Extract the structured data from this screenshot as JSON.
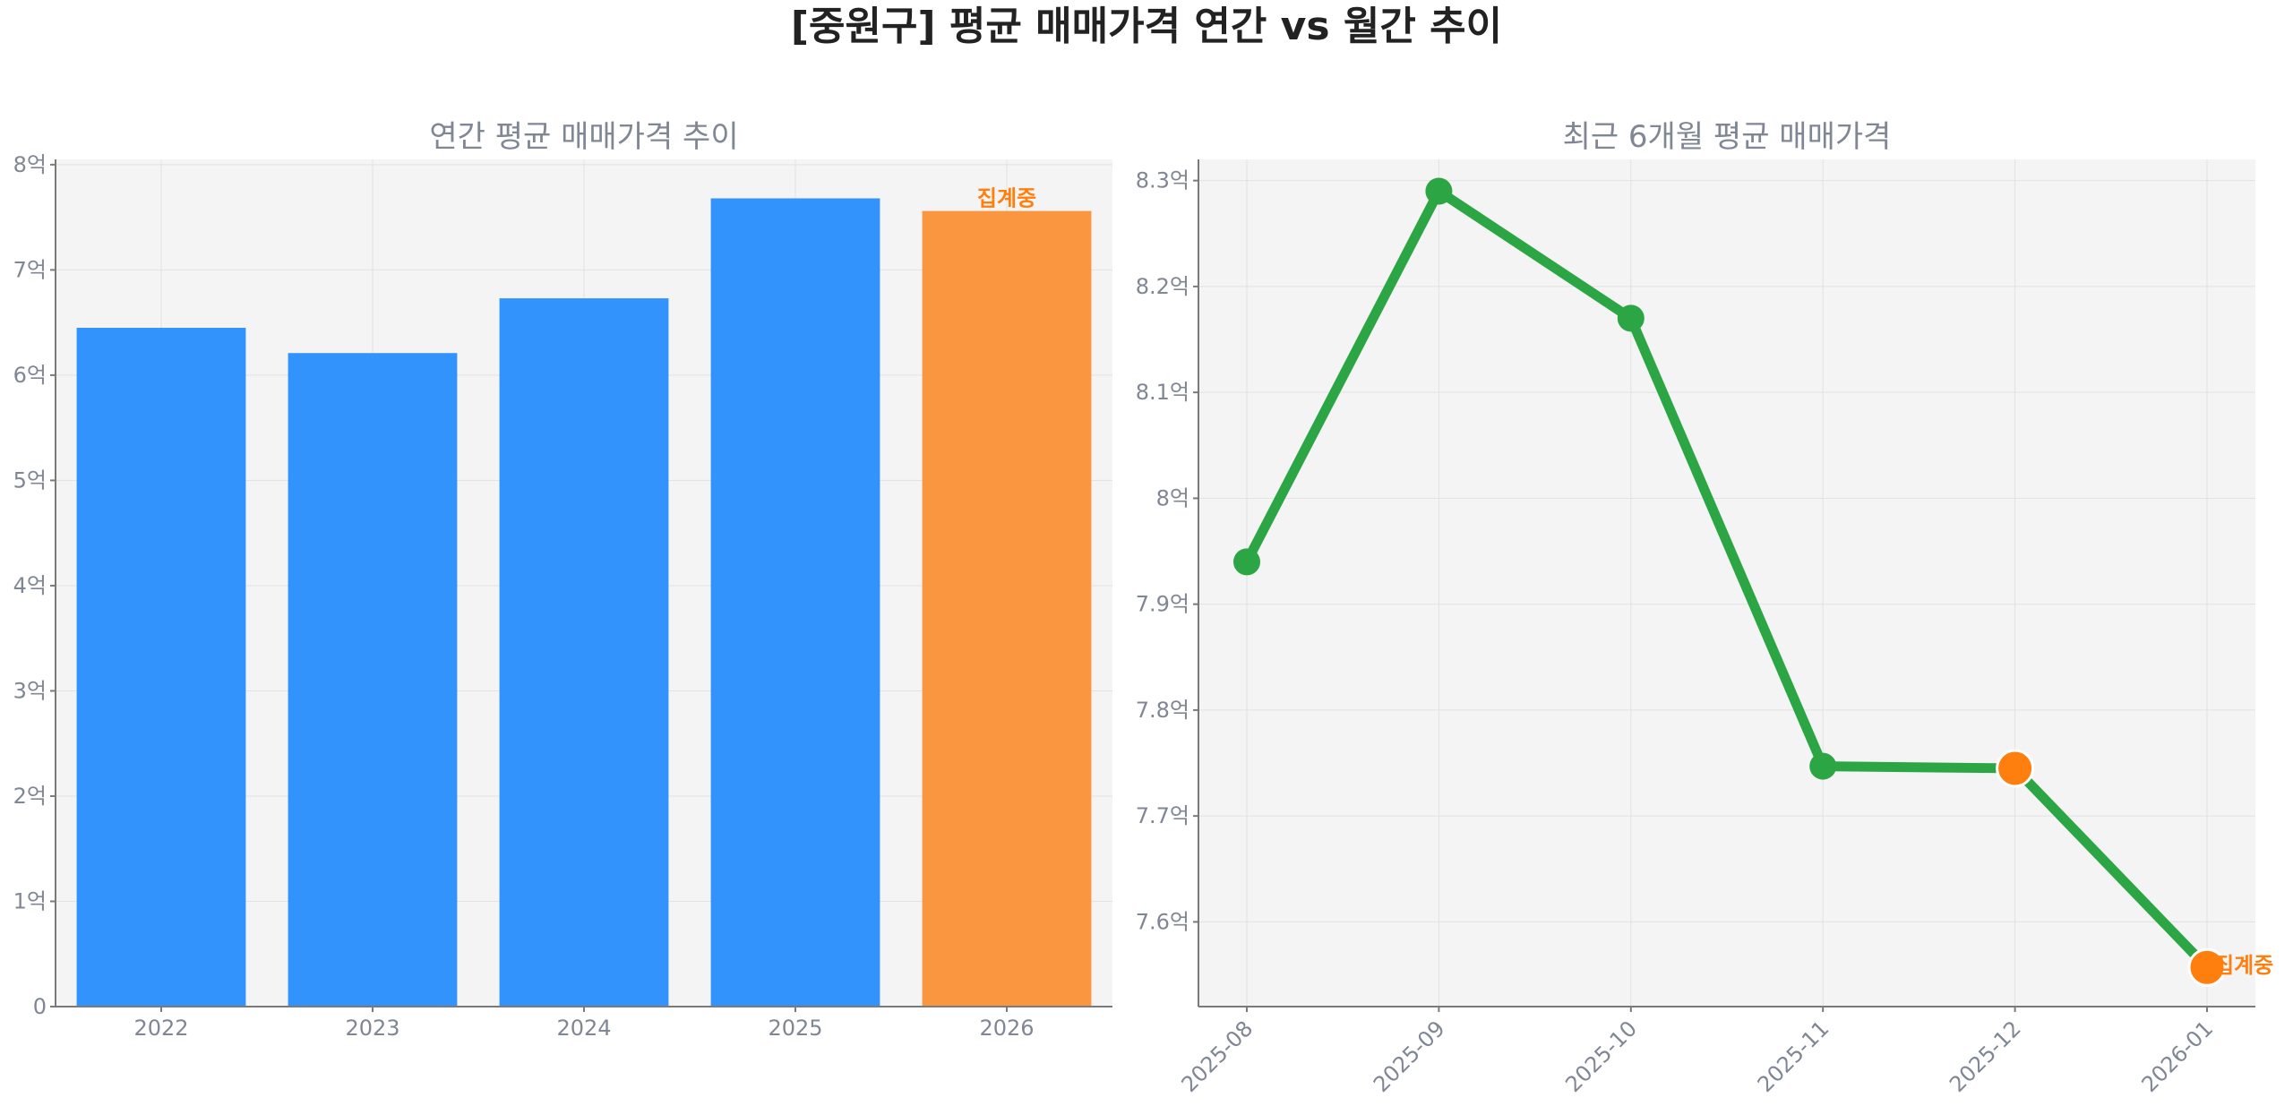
{
  "figure": {
    "title": "[중원구] 평균 매매가격 연간 vs 월간 추이"
  },
  "chart_data": [
    {
      "type": "bar",
      "title": "연간 평균 매매가격 추이",
      "categories": [
        "2022",
        "2023",
        "2024",
        "2025",
        "2026"
      ],
      "values": [
        6.45,
        6.21,
        6.73,
        7.68,
        7.56
      ],
      "ylim": [
        0,
        8.05
      ],
      "yticks": [
        0,
        1,
        2,
        3,
        4,
        5,
        6,
        7,
        8
      ],
      "ytick_labels": [
        "0",
        "1억",
        "2억",
        "3억",
        "4억",
        "5억",
        "6억",
        "7억",
        "8억"
      ],
      "colors": [
        "#3293fc",
        "#3293fc",
        "#3293fc",
        "#3293fc",
        "#f9963f"
      ],
      "grid": true,
      "annotations": [
        {
          "category": "2026",
          "text": "집계중",
          "color": "#ff7f0e"
        }
      ]
    },
    {
      "type": "line",
      "title": "최근 6개월 평균 매매가격",
      "x": [
        "2025-08",
        "2025-09",
        "2025-10",
        "2025-11",
        "2025-12",
        "2026-01"
      ],
      "values": [
        7.94,
        8.29,
        8.17,
        7.747,
        7.745,
        7.557
      ],
      "ylim": [
        7.52,
        8.32
      ],
      "yticks": [
        7.6,
        7.7,
        7.8,
        7.9,
        8.0,
        8.1,
        8.2,
        8.3
      ],
      "ytick_labels": [
        "7.6억",
        "7.7억",
        "7.8억",
        "7.9억",
        "8억",
        "8.1억",
        "8.2억",
        "8.3억"
      ],
      "line_color": "#2ca544",
      "highlight_color": "#ff7f0e",
      "highlight_points": [
        "2025-12",
        "2026-01"
      ],
      "grid": true,
      "annotations": [
        {
          "x": "2026-01",
          "text": "집계중",
          "color": "#ff7f0e"
        }
      ]
    }
  ]
}
